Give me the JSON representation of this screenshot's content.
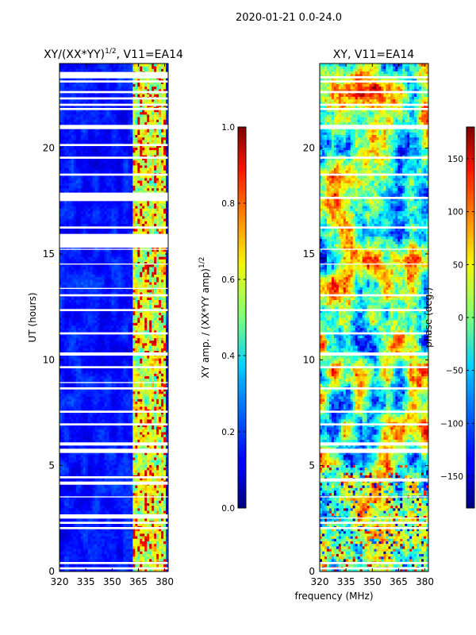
{
  "figure_title": "2020-01-21 0.0-24.0",
  "x_label_shared": "frequency (MHz)",
  "chart_data": [
    {
      "type": "heatmap",
      "title_base": "XY/(XX*YY)",
      "title_sup": "1/2",
      "title_tail": ", V11=EA14",
      "xlabel": "frequency (MHz)",
      "ylabel": "UT (hours)",
      "xlim": [
        320,
        382
      ],
      "ylim": [
        0,
        24
      ],
      "xticks": [
        320,
        335,
        350,
        365,
        380
      ],
      "yticks": [
        0,
        5,
        10,
        15,
        20
      ],
      "colormap": "jet",
      "colorbar": {
        "label_base": "XY amp. / (XX*YY amp)",
        "label_sup": "1/2",
        "vmin": 0.0,
        "vmax": 1.0,
        "ticks": [
          "0.0",
          "0.2",
          "0.4",
          "0.6",
          "0.8",
          "1.0"
        ]
      },
      "bright_band_mhz": [
        362,
        380
      ],
      "flagged_ut_ranges": [
        [
          0.1,
          0.2
        ],
        [
          0.35,
          0.45
        ],
        [
          2.0,
          2.1
        ],
        [
          2.25,
          2.35
        ],
        [
          2.5,
          2.55
        ],
        [
          2.55,
          2.7
        ],
        [
          3.5,
          3.55
        ],
        [
          4.1,
          4.25
        ],
        [
          4.4,
          4.5
        ],
        [
          5.6,
          5.8
        ],
        [
          5.95,
          6.1
        ],
        [
          6.9,
          7.0
        ],
        [
          7.5,
          7.6
        ],
        [
          8.6,
          8.7
        ],
        [
          8.9,
          8.95
        ],
        [
          9.6,
          9.7
        ],
        [
          10.2,
          10.35
        ],
        [
          11.2,
          11.3
        ],
        [
          12.3,
          12.4
        ],
        [
          13.0,
          13.1
        ],
        [
          13.35,
          13.4
        ],
        [
          14.5,
          14.55
        ],
        [
          15.2,
          15.25
        ],
        [
          15.3,
          15.95
        ],
        [
          16.2,
          16.3
        ],
        [
          17.5,
          17.7
        ],
        [
          17.7,
          17.9
        ],
        [
          18.7,
          18.8
        ],
        [
          19.5,
          19.6
        ],
        [
          20.1,
          20.2
        ],
        [
          20.9,
          21.1
        ],
        [
          21.8,
          21.9
        ],
        [
          22.0,
          22.1
        ],
        [
          22.3,
          22.4
        ],
        [
          22.6,
          22.7
        ],
        [
          23.1,
          23.2
        ],
        [
          23.3,
          23.6
        ]
      ]
    },
    {
      "type": "heatmap",
      "title": "XY, V11=EA14",
      "xlabel": "frequency (MHz)",
      "ylabel": "",
      "xlim": [
        320,
        382
      ],
      "ylim": [
        0,
        24
      ],
      "xticks": [
        320,
        335,
        350,
        365,
        380
      ],
      "yticks": [
        0,
        5,
        10,
        15,
        20
      ],
      "colormap": "jet",
      "colorbar": {
        "label": "phase (deg.)",
        "vmin": -180,
        "vmax": 180,
        "ticks": [
          "150",
          "100",
          "50",
          "0",
          "−50",
          "−100",
          "−150"
        ]
      },
      "flagged_ut_ranges": [
        [
          0.1,
          0.2
        ],
        [
          0.35,
          0.45
        ],
        [
          2.0,
          2.1
        ],
        [
          2.25,
          2.35
        ],
        [
          2.5,
          2.55
        ],
        [
          3.5,
          3.55
        ],
        [
          4.25,
          4.4
        ],
        [
          5.6,
          5.8
        ],
        [
          5.95,
          6.1
        ],
        [
          6.9,
          7.0
        ],
        [
          7.5,
          7.6
        ],
        [
          8.6,
          8.7
        ],
        [
          9.6,
          9.7
        ],
        [
          10.2,
          10.35
        ],
        [
          11.2,
          11.3
        ],
        [
          12.3,
          12.4
        ],
        [
          13.0,
          13.1
        ],
        [
          14.5,
          14.55
        ],
        [
          15.2,
          15.25
        ],
        [
          16.2,
          16.3
        ],
        [
          17.6,
          17.7
        ],
        [
          18.7,
          18.8
        ],
        [
          19.5,
          19.6
        ],
        [
          20.9,
          21.1
        ],
        [
          21.8,
          21.9
        ],
        [
          22.0,
          22.1
        ],
        [
          22.6,
          22.7
        ],
        [
          23.1,
          23.2
        ],
        [
          23.3,
          23.4
        ]
      ]
    }
  ]
}
